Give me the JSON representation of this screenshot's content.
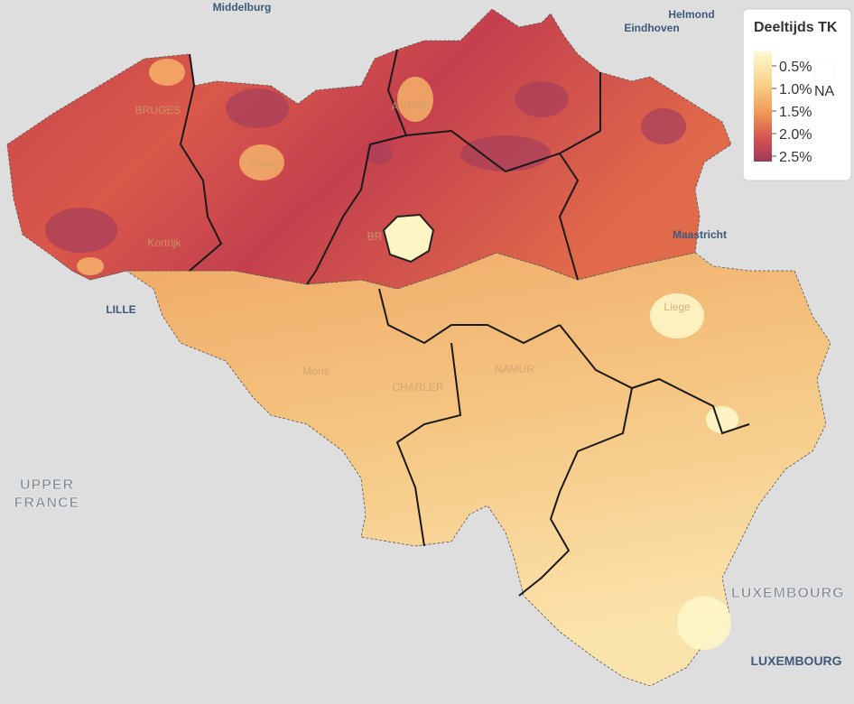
{
  "legend": {
    "title": "Deeltijds TK",
    "ticks": [
      "0.5%",
      "1.0%",
      "1.5%",
      "2.0%",
      "2.5%"
    ],
    "na_label": "NA"
  },
  "places": {
    "middelburg": "Middelburg",
    "helmond": "Helmond",
    "eindhoven": "Eindhoven",
    "bruges": "BRUGES",
    "antwerp": "ANTWE",
    "ghent": "Ghent",
    "kortrijk": "Kortrijk",
    "brussels": "BR",
    "lille": "LILLE",
    "maastricht": "Maastricht",
    "liege": "Liege",
    "mons": "Mons",
    "charleroi": "CHARLER",
    "namur": "NAMUR",
    "upper_france_1": "UPPER",
    "upper_france_2": "FRANCE",
    "luxembourg_region": "LUXEMBOURG",
    "luxembourg_city": "LUXEMBOURG"
  }
}
